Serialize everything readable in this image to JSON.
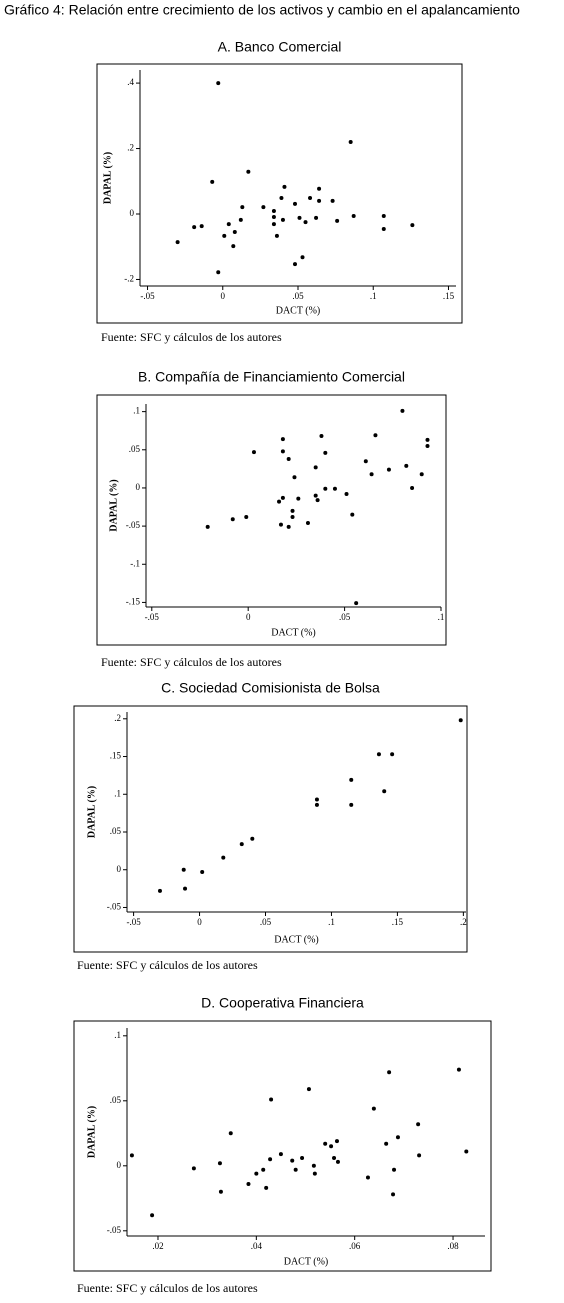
{
  "title": "Gráfico 4: Relación entre crecimiento de los activos y cambio en el apalancamiento",
  "chart_data": [
    {
      "type": "scatter",
      "title": "A. Banco Comercial",
      "xlabel": "DACT (%)",
      "ylabel": "DAPAL (%)",
      "source": "Fuente: SFC y cálculos de los autores",
      "color": "#000000",
      "xlim": [
        -0.055,
        0.155
      ],
      "ylim": [
        -0.22,
        0.44
      ],
      "xticks": [
        {
          "value": -0.05,
          "label": "-.05"
        },
        0,
        {
          "value": 0.05,
          "label": ".05"
        },
        {
          "value": 0.1,
          "label": ".1"
        },
        {
          "value": 0.15,
          "label": ".15"
        }
      ],
      "yticks": [
        {
          "value": -0.2,
          "label": "-.2"
        },
        0,
        {
          "value": 0.2,
          "label": ".2"
        },
        {
          "value": 0.4,
          "label": ".4"
        }
      ],
      "x": [
        -0.003,
        0.085,
        -0.007,
        0.017,
        -0.03,
        -0.019,
        -0.014,
        -0.003,
        0.001,
        0.004,
        0.007,
        0.008,
        0.012,
        0.013,
        0.027,
        0.034,
        0.034,
        0.034,
        0.036,
        0.039,
        0.041,
        0.04,
        0.048,
        0.048,
        0.051,
        0.053,
        0.055,
        0.058,
        0.062,
        0.064,
        0.064,
        0.073,
        0.076,
        0.087,
        0.107,
        0.107,
        0.126
      ],
      "y": [
        0.4,
        0.22,
        0.098,
        0.129,
        -0.086,
        -0.04,
        -0.037,
        -0.178,
        -0.067,
        -0.031,
        -0.098,
        -0.055,
        -0.018,
        0.021,
        0.021,
        0.009,
        -0.009,
        -0.031,
        -0.067,
        0.049,
        0.083,
        -0.018,
        0.031,
        -0.153,
        -0.012,
        -0.132,
        -0.025,
        0.049,
        -0.012,
        0.04,
        0.077,
        0.04,
        -0.021,
        -0.006,
        -0.006,
        -0.046,
        -0.034
      ]
    },
    {
      "type": "scatter",
      "title": "B. Compañía de Financiamiento Comercial",
      "xlabel": "DACT (%)",
      "ylabel": "DAPAL (%)",
      "source": "Fuente: SFC y cálculos de los autores",
      "color": "#000000",
      "xlim": [
        -0.053,
        0.1
      ],
      "ylim": [
        -0.156,
        0.11
      ],
      "xticks": [
        {
          "value": -0.05,
          "label": "-.05"
        },
        0,
        {
          "value": 0.05,
          "label": ".05"
        },
        {
          "value": 0.1,
          "label": ".1"
        }
      ],
      "yticks": [
        {
          "value": -0.15,
          "label": "-.15"
        },
        {
          "value": -0.1,
          "label": "-.1"
        },
        {
          "value": -0.05,
          "label": "-.05"
        },
        0,
        {
          "value": 0.05,
          "label": ".05"
        },
        {
          "value": 0.1,
          "label": ".1"
        }
      ],
      "x": [
        0.08,
        0.093,
        0.093,
        0.066,
        0.038,
        0.018,
        0.003,
        0.018,
        0.021,
        0.04,
        0.061,
        0.064,
        0.073,
        0.082,
        0.09,
        0.085,
        0.024,
        0.035,
        0.04,
        0.045,
        0.051,
        0.035,
        0.036,
        0.016,
        0.018,
        0.026,
        0.023,
        0.023,
        0.054,
        0.031,
        0.017,
        0.021,
        -0.001,
        -0.008,
        -0.021,
        0.056
      ],
      "y": [
        0.101,
        0.063,
        0.055,
        0.069,
        0.068,
        0.064,
        0.047,
        0.048,
        0.038,
        0.046,
        0.035,
        0.018,
        0.024,
        0.029,
        0.018,
        0,
        0.014,
        0.027,
        -0.001,
        -0.001,
        -0.008,
        -0.01,
        -0.016,
        -0.018,
        -0.013,
        -0.014,
        -0.03,
        -0.038,
        -0.035,
        -0.046,
        -0.048,
        -0.051,
        -0.038,
        -0.041,
        -0.051,
        -0.151
      ]
    },
    {
      "type": "scatter",
      "title": "C. Sociedad Comisionista de Bolsa",
      "xlabel": "DACT (%)",
      "ylabel": "DAPAL (%)",
      "source": "Fuente: SFC y cálculos de los autores",
      "color": "#000000",
      "xlim": [
        -0.055,
        0.202
      ],
      "ylim": [
        -0.056,
        0.209
      ],
      "xticks": [
        {
          "value": -0.05,
          "label": "-.05"
        },
        0,
        {
          "value": 0.05,
          "label": ".05"
        },
        {
          "value": 0.1,
          "label": ".1"
        },
        {
          "value": 0.15,
          "label": ".15"
        },
        {
          "value": 0.2,
          "label": ".2"
        }
      ],
      "yticks": [
        {
          "value": -0.05,
          "label": "-.05"
        },
        0,
        {
          "value": 0.05,
          "label": ".05"
        },
        {
          "value": 0.1,
          "label": ".1"
        },
        {
          "value": 0.15,
          "label": ".15"
        },
        {
          "value": 0.2,
          "label": ".2"
        }
      ],
      "x": [
        -0.03,
        -0.012,
        -0.011,
        0.002,
        0.018,
        0.032,
        0.04,
        0.089,
        0.089,
        0.115,
        0.115,
        0.136,
        0.146,
        0.14,
        0.198
      ],
      "y": [
        -0.028,
        0,
        -0.025,
        -0.003,
        0.016,
        0.034,
        0.041,
        0.093,
        0.086,
        0.086,
        0.119,
        0.153,
        0.153,
        0.104,
        0.198
      ]
    },
    {
      "type": "scatter",
      "title": "D. Cooperativa Financiera",
      "xlabel": "DACT (%)",
      "ylabel": "DAPAL (%)",
      "source": "Fuente: SFC y cálculos de los autores",
      "color": "#000000",
      "xlim": [
        0.0137,
        0.0865
      ],
      "ylim": [
        -0.054,
        0.106
      ],
      "xticks": [
        {
          "value": 0.02,
          "label": ".02"
        },
        {
          "value": 0.04,
          "label": ".04"
        },
        {
          "value": 0.06,
          "label": ".06"
        },
        {
          "value": 0.08,
          "label": ".08"
        }
      ],
      "yticks": [
        {
          "value": -0.05,
          "label": "-.05"
        },
        0,
        {
          "value": 0.05,
          "label": ".05"
        },
        {
          "value": 0.1,
          "label": ".1"
        }
      ],
      "x": [
        0.0147,
        0.0188,
        0.0273,
        0.0326,
        0.0328,
        0.0348,
        0.0384,
        0.04,
        0.0414,
        0.042,
        0.0428,
        0.043,
        0.045,
        0.0473,
        0.048,
        0.0493,
        0.0507,
        0.0517,
        0.0519,
        0.054,
        0.0552,
        0.0558,
        0.0564,
        0.0566,
        0.0627,
        0.0639,
        0.0664,
        0.067,
        0.0678,
        0.068,
        0.0688,
        0.0729,
        0.0731,
        0.0812,
        0.0827
      ],
      "y": [
        0.008,
        -0.038,
        -0.002,
        0.002,
        -0.02,
        0.025,
        -0.014,
        -0.006,
        -0.003,
        -0.017,
        0.005,
        0.051,
        0.009,
        0.004,
        -0.003,
        0.006,
        0.059,
        0,
        -0.006,
        0.017,
        0.015,
        0.006,
        0.019,
        0.003,
        -0.009,
        0.044,
        0.017,
        0.072,
        -0.022,
        -0.003,
        0.022,
        0.032,
        0.008,
        0.074,
        0.011
      ]
    }
  ]
}
